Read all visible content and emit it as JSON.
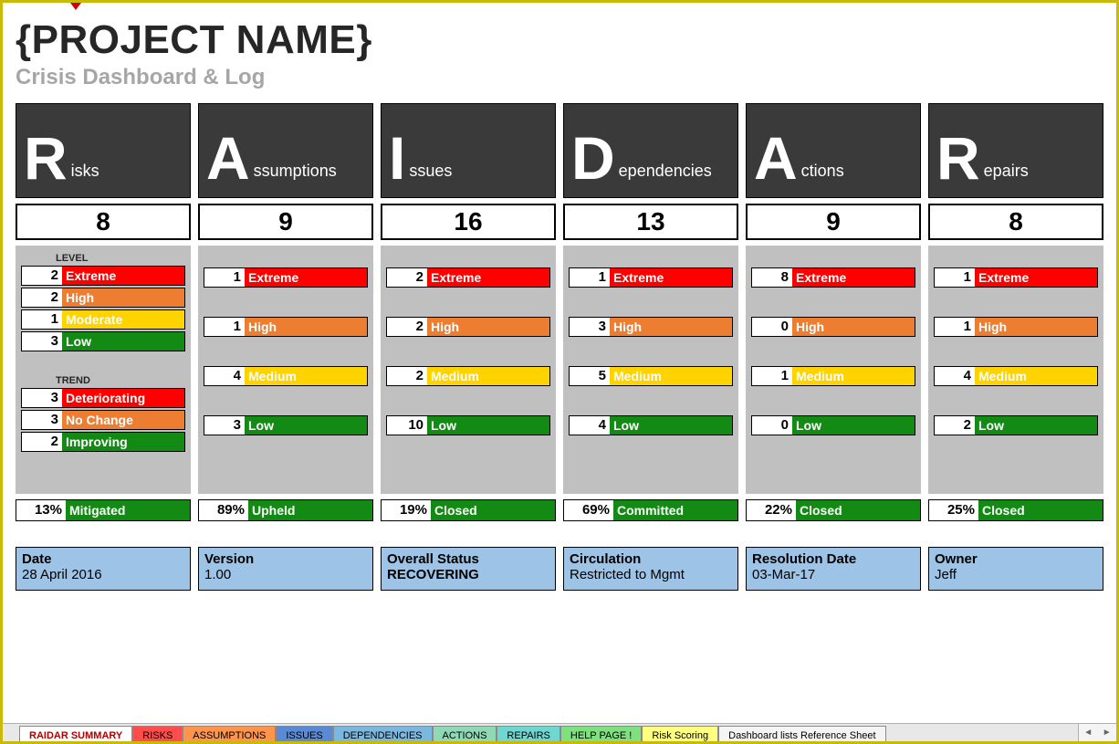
{
  "header": {
    "title": "{PROJECT NAME}",
    "subtitle": "Crisis Dashboard & Log"
  },
  "colors": {
    "extreme": "#ff0000",
    "high": "#ed7d31",
    "moderate": "#ffd300",
    "medium": "#ffd300",
    "low": "#138a13",
    "deteriorating": "#ff0000",
    "nochange": "#ed7d31",
    "improving": "#138a13",
    "status_green": "#138a13",
    "header_bg": "#3a3a3a",
    "footer_bg": "#9dc3e6",
    "gray_bg": "#c0c0c0"
  },
  "columns": [
    {
      "letter": "R",
      "rest": "isks",
      "count": "8",
      "level_title": "LEVEL",
      "levels": [
        {
          "n": "2",
          "t": "Extreme",
          "c": "extreme"
        },
        {
          "n": "2",
          "t": "High",
          "c": "high"
        },
        {
          "n": "1",
          "t": "Moderate",
          "c": "moderate"
        },
        {
          "n": "3",
          "t": "Low",
          "c": "low"
        }
      ],
      "trend_title": "TREND",
      "trends": [
        {
          "n": "3",
          "t": "Deteriorating",
          "c": "deteriorating"
        },
        {
          "n": "3",
          "t": "No Change",
          "c": "nochange"
        },
        {
          "n": "2",
          "t": "Improving",
          "c": "improving"
        }
      ],
      "status": {
        "pct": "13%",
        "t": "Mitigated",
        "c": "status_green"
      }
    },
    {
      "letter": "A",
      "rest": "ssumptions",
      "count": "9",
      "levels": [
        {
          "n": "1",
          "t": "Extreme",
          "c": "extreme"
        },
        {
          "n": "1",
          "t": "High",
          "c": "high"
        },
        {
          "n": "4",
          "t": "Medium",
          "c": "medium"
        },
        {
          "n": "3",
          "t": "Low",
          "c": "low"
        }
      ],
      "status": {
        "pct": "89%",
        "t": "Upheld",
        "c": "status_green"
      }
    },
    {
      "letter": "I",
      "rest": "ssues",
      "count": "16",
      "levels": [
        {
          "n": "2",
          "t": "Extreme",
          "c": "extreme"
        },
        {
          "n": "2",
          "t": "High",
          "c": "high"
        },
        {
          "n": "2",
          "t": "Medium",
          "c": "medium"
        },
        {
          "n": "10",
          "t": "Low",
          "c": "low"
        }
      ],
      "status": {
        "pct": "19%",
        "t": "Closed",
        "c": "status_green"
      }
    },
    {
      "letter": "D",
      "rest": "ependencies",
      "count": "13",
      "levels": [
        {
          "n": "1",
          "t": "Extreme",
          "c": "extreme"
        },
        {
          "n": "3",
          "t": "High",
          "c": "high"
        },
        {
          "n": "5",
          "t": "Medium",
          "c": "medium"
        },
        {
          "n": "4",
          "t": "Low",
          "c": "low"
        }
      ],
      "status": {
        "pct": "69%",
        "t": "Committed",
        "c": "status_green"
      }
    },
    {
      "letter": "A",
      "rest": "ctions",
      "count": "9",
      "levels": [
        {
          "n": "8",
          "t": "Extreme",
          "c": "extreme"
        },
        {
          "n": "0",
          "t": "High",
          "c": "high"
        },
        {
          "n": "1",
          "t": "Medium",
          "c": "medium"
        },
        {
          "n": "0",
          "t": "Low",
          "c": "low"
        }
      ],
      "status": {
        "pct": "22%",
        "t": "Closed",
        "c": "status_green"
      }
    },
    {
      "letter": "R",
      "rest": "epairs",
      "count": "8",
      "levels": [
        {
          "n": "1",
          "t": "Extreme",
          "c": "extreme"
        },
        {
          "n": "1",
          "t": "High",
          "c": "high"
        },
        {
          "n": "4",
          "t": "Medium",
          "c": "medium"
        },
        {
          "n": "2",
          "t": "Low",
          "c": "low"
        }
      ],
      "status": {
        "pct": "25%",
        "t": "Closed",
        "c": "status_green"
      }
    }
  ],
  "footer": [
    {
      "k": "Date",
      "v": "28 April 2016"
    },
    {
      "k": "Version",
      "v": "1.00"
    },
    {
      "k": "Overall Status",
      "v": "RECOVERING",
      "bold": true
    },
    {
      "k": "Circulation",
      "v": "Restricted to Mgmt"
    },
    {
      "k": "Resolution Date",
      "v": "03-Mar-17"
    },
    {
      "k": "Owner",
      "v": "Jeff"
    }
  ],
  "tabs": [
    {
      "t": "RAIDAR SUMMARY",
      "bg": "#ffffff",
      "fg": "#b00000",
      "active": true
    },
    {
      "t": "RISKS",
      "bg": "#ff4d4d",
      "fg": "#000000"
    },
    {
      "t": "ASSUMPTIONS",
      "bg": "#ff944d",
      "fg": "#000000"
    },
    {
      "t": "ISSUES",
      "bg": "#5a8ad6",
      "fg": "#000000"
    },
    {
      "t": "DEPENDENCIES",
      "bg": "#7bb8e0",
      "fg": "#000000"
    },
    {
      "t": "ACTIONS",
      "bg": "#8fd9b6",
      "fg": "#000000"
    },
    {
      "t": "REPAIRS",
      "bg": "#6fd6d0",
      "fg": "#000000"
    },
    {
      "t": "HELP PAGE !",
      "bg": "#7fe07f",
      "fg": "#000000"
    },
    {
      "t": "Risk Scoring",
      "bg": "#ffff80",
      "fg": "#000000"
    },
    {
      "t": "Dashboard lists Reference Sheet",
      "bg": "#f4f4f4",
      "fg": "#000000"
    }
  ]
}
